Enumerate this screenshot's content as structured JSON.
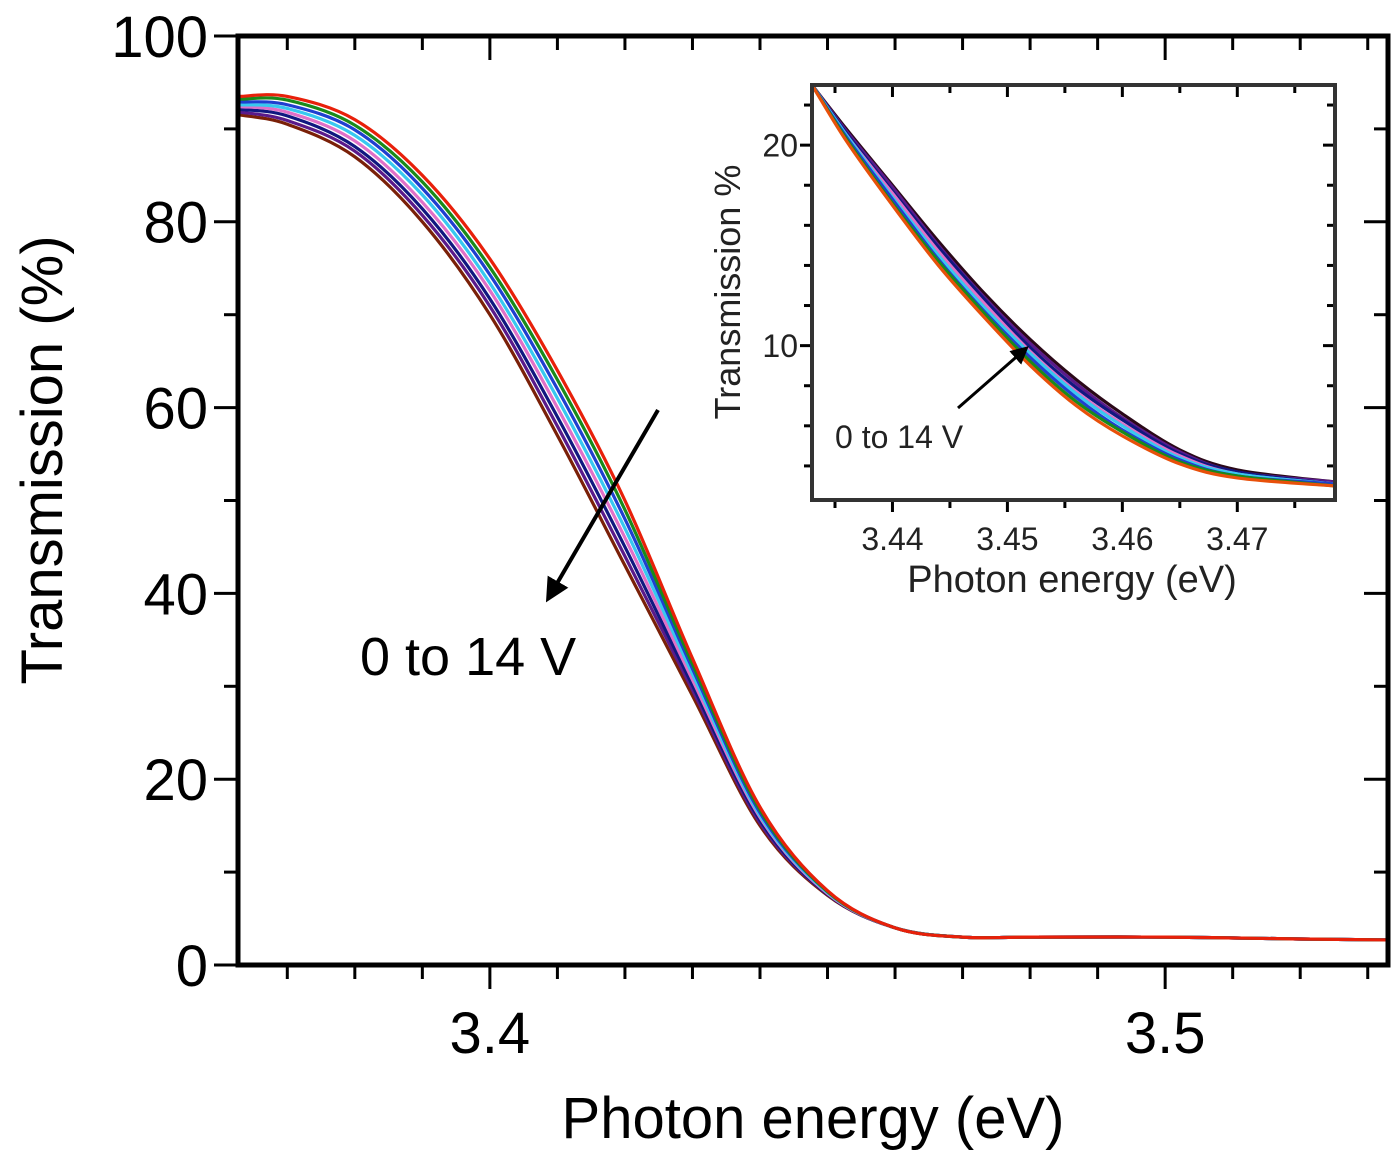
{
  "chart_data": [
    {
      "type": "line",
      "title": "",
      "xlabel": "Photon energy (eV)",
      "ylabel": "Transmission (%)",
      "xlim": [
        3.3627,
        3.533
      ],
      "ylim": [
        0,
        100
      ],
      "xticks": [
        3.4,
        3.5
      ],
      "xtick_labels": [
        "3.4",
        "3.5"
      ],
      "yticks": [
        0,
        20,
        40,
        60,
        80,
        100
      ],
      "ytick_labels": [
        "0",
        "20",
        "40",
        "60",
        "80",
        "100"
      ],
      "grid": false,
      "annotation": "0 to 14 V",
      "x": [
        3.363,
        3.37,
        3.38,
        3.39,
        3.4,
        3.41,
        3.42,
        3.43,
        3.44,
        3.45,
        3.46,
        3.47,
        3.48,
        3.5,
        3.52,
        3.533
      ],
      "series": [
        {
          "color": "#e8200a",
          "values": [
            93.5,
            93.5,
            91.0,
            85.0,
            76.0,
            64.0,
            50.0,
            33.0,
            17.0,
            8.0,
            4.0,
            3.0,
            3.0,
            3.0,
            2.8,
            2.7
          ]
        },
        {
          "color": "#1a8a1a",
          "values": [
            93.2,
            93.1,
            90.4,
            84.3,
            75.1,
            63.0,
            49.0,
            32.4,
            16.7,
            7.9,
            4.0,
            3.0,
            3.0,
            3.0,
            2.8,
            2.7
          ]
        },
        {
          "color": "#1f3fd0",
          "values": [
            92.9,
            92.6,
            89.9,
            83.6,
            74.3,
            62.0,
            48.0,
            31.9,
            16.4,
            7.9,
            4.0,
            3.0,
            3.0,
            3.0,
            2.8,
            2.7
          ]
        },
        {
          "color": "#38c8f0",
          "values": [
            92.6,
            92.2,
            89.3,
            82.9,
            73.4,
            61.0,
            47.0,
            31.3,
            16.1,
            7.8,
            4.0,
            3.0,
            3.0,
            3.0,
            2.8,
            2.7
          ]
        },
        {
          "color": "#e070c8",
          "values": [
            92.4,
            91.8,
            88.7,
            82.1,
            72.6,
            60.0,
            46.0,
            30.7,
            15.9,
            7.7,
            4.0,
            3.0,
            3.0,
            3.0,
            2.8,
            2.7
          ]
        },
        {
          "color": "#101880",
          "values": [
            92.1,
            91.4,
            88.1,
            81.4,
            71.7,
            59.0,
            45.0,
            30.1,
            15.6,
            7.6,
            4.0,
            3.0,
            3.0,
            3.0,
            2.8,
            2.7
          ]
        },
        {
          "color": "#5a1a8a",
          "values": [
            91.8,
            90.9,
            87.6,
            80.7,
            70.9,
            58.0,
            44.0,
            29.6,
            15.3,
            7.6,
            4.0,
            3.0,
            3.0,
            3.0,
            2.8,
            2.7
          ]
        },
        {
          "color": "#7a2008",
          "values": [
            91.5,
            90.5,
            87.0,
            80.0,
            70.0,
            57.0,
            43.0,
            29.0,
            15.0,
            7.5,
            4.0,
            3.0,
            3.0,
            3.0,
            2.8,
            2.7
          ]
        }
      ]
    },
    {
      "type": "line",
      "title": "",
      "xlabel": "Photon energy (eV)",
      "ylabel": "Transmission %",
      "xlim": [
        3.433,
        3.4785
      ],
      "ylim": [
        2.3,
        23
      ],
      "xticks": [
        3.44,
        3.45,
        3.46,
        3.47
      ],
      "xtick_labels": [
        "3.44",
        "3.45",
        "3.46",
        "3.47"
      ],
      "yticks": [
        10,
        20
      ],
      "ytick_labels": [
        "10",
        "20"
      ],
      "grid": false,
      "annotation": "0 to 14 V",
      "x": [
        3.433,
        3.436,
        3.44,
        3.444,
        3.448,
        3.452,
        3.456,
        3.46,
        3.465,
        3.47,
        3.4785
      ],
      "series": [
        {
          "color": "#e8500a",
          "values": [
            23,
            20.2,
            17.0,
            14.0,
            11.4,
            9.0,
            7.0,
            5.5,
            4.1,
            3.4,
            3.0
          ]
        },
        {
          "color": "#1a8a1a",
          "values": [
            23,
            20.3,
            17.1,
            14.2,
            11.6,
            9.2,
            7.2,
            5.7,
            4.2,
            3.5,
            3.0
          ]
        },
        {
          "color": "#1f3fd0",
          "values": [
            23,
            20.4,
            17.3,
            14.3,
            11.7,
            9.4,
            7.4,
            5.8,
            4.3,
            3.5,
            3.1
          ]
        },
        {
          "color": "#38c8f0",
          "values": [
            23,
            20.5,
            17.4,
            14.5,
            11.9,
            9.6,
            7.6,
            6.0,
            4.4,
            3.6,
            3.1
          ]
        },
        {
          "color": "#e070c8",
          "values": [
            23,
            20.5,
            17.6,
            14.7,
            12.1,
            9.7,
            7.7,
            6.1,
            4.5,
            3.6,
            3.1
          ]
        },
        {
          "color": "#101880",
          "values": [
            23,
            20.6,
            17.7,
            14.9,
            12.3,
            9.9,
            7.9,
            6.3,
            4.6,
            3.7,
            3.1
          ]
        },
        {
          "color": "#5a1a8a",
          "values": [
            23,
            20.7,
            17.9,
            15.0,
            12.4,
            10.1,
            8.1,
            6.4,
            4.7,
            3.7,
            3.2
          ]
        },
        {
          "color": "#2a0818",
          "values": [
            23,
            20.8,
            18.0,
            15.2,
            12.6,
            10.3,
            8.3,
            6.6,
            4.8,
            3.8,
            3.2
          ]
        }
      ]
    }
  ]
}
